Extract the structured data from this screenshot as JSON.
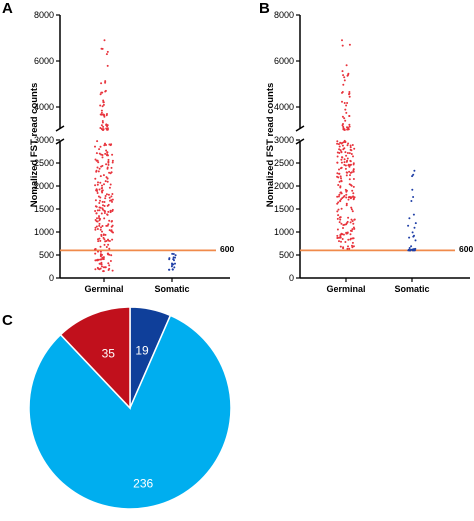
{
  "panel_letters": [
    "A",
    "B",
    "C"
  ],
  "chart_data": [
    {
      "type": "scatter",
      "panel": "A",
      "ylabel": "Nomalized FST read counts",
      "y_axis_break": {
        "lower": [
          0,
          3000
        ],
        "upper": [
          3000,
          8000
        ]
      },
      "yticks_lower": [
        0,
        500,
        1000,
        1500,
        2000,
        2500,
        3000
      ],
      "yticks_upper": [
        4000,
        6000,
        8000
      ],
      "categories": [
        "Germinal",
        "Somatic"
      ],
      "reference_line": {
        "value": 600,
        "label": "600",
        "color": "#f08a4b"
      },
      "series": [
        {
          "category": "Germinal",
          "color": "#e8333c",
          "count": 271,
          "min": 150,
          "max": 6900,
          "upper_count": 50
        },
        {
          "category": "Somatic",
          "color": "#1f3fa6",
          "count": 19,
          "min": 150,
          "max": 560,
          "upper_count": 0
        }
      ]
    },
    {
      "type": "scatter",
      "panel": "B",
      "ylabel": "Nomalized FST read counts",
      "y_axis_break": {
        "lower": [
          0,
          3000
        ],
        "upper": [
          3000,
          8000
        ]
      },
      "yticks_lower": [
        0,
        500,
        1000,
        1500,
        2000,
        2500,
        3000
      ],
      "yticks_upper": [
        4000,
        6000,
        8000
      ],
      "categories": [
        "Germinal",
        "Somatic"
      ],
      "reference_line": {
        "value": 600,
        "label": "600",
        "color": "#f08a4b"
      },
      "series": [
        {
          "category": "Germinal",
          "color": "#e8333c",
          "count": 236,
          "min": 620,
          "max": 6900,
          "upper_count": 45
        },
        {
          "category": "Somatic",
          "color": "#1f3fa6",
          "count": 35,
          "min": 600,
          "max": 2330,
          "upper_count": 0
        }
      ]
    },
    {
      "type": "pie",
      "panel": "C",
      "values": [
        19,
        236,
        35
      ],
      "labels": [
        "19",
        "236",
        "35"
      ],
      "colors": [
        "#0f3f9a",
        "#00aeef",
        "#c1101c"
      ]
    }
  ]
}
